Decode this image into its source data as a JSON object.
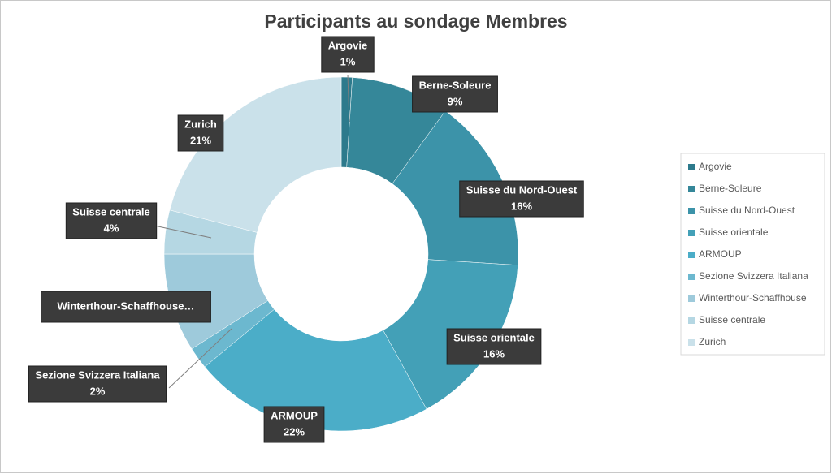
{
  "chart_data": {
    "type": "donut",
    "title": "Participants au sondage Membres",
    "categories": [
      "Argovie",
      "Berne-Soleure",
      "Suisse du Nord-Ouest",
      "Suisse orientale",
      "ARMOUP",
      "Sezione Svizzera Italiana",
      "Winterthour-Schaffhouse",
      "Suisse centrale",
      "Zurich"
    ],
    "values": [
      1,
      9,
      16,
      16,
      22,
      2,
      9,
      4,
      21
    ],
    "value_labels": [
      "1%",
      "9%",
      "16%",
      "16%",
      "22%",
      "2%",
      null,
      "4%",
      "21%"
    ],
    "callout_names": [
      "Argovie",
      "Berne-Soleure",
      "Suisse du Nord-Ouest",
      "Suisse orientale",
      "ARMOUP",
      "Sezione Svizzera Italiana",
      "Winterthour-Schaffhouse…",
      "Suisse centrale",
      "Zurich"
    ],
    "colors": [
      "#2d7a8c",
      "#358799",
      "#3c93a9",
      "#43a0b7",
      "#4badc8",
      "#6cb8cf",
      "#9ecadb",
      "#b5d7e3",
      "#cae1ea"
    ],
    "legend": "right"
  }
}
